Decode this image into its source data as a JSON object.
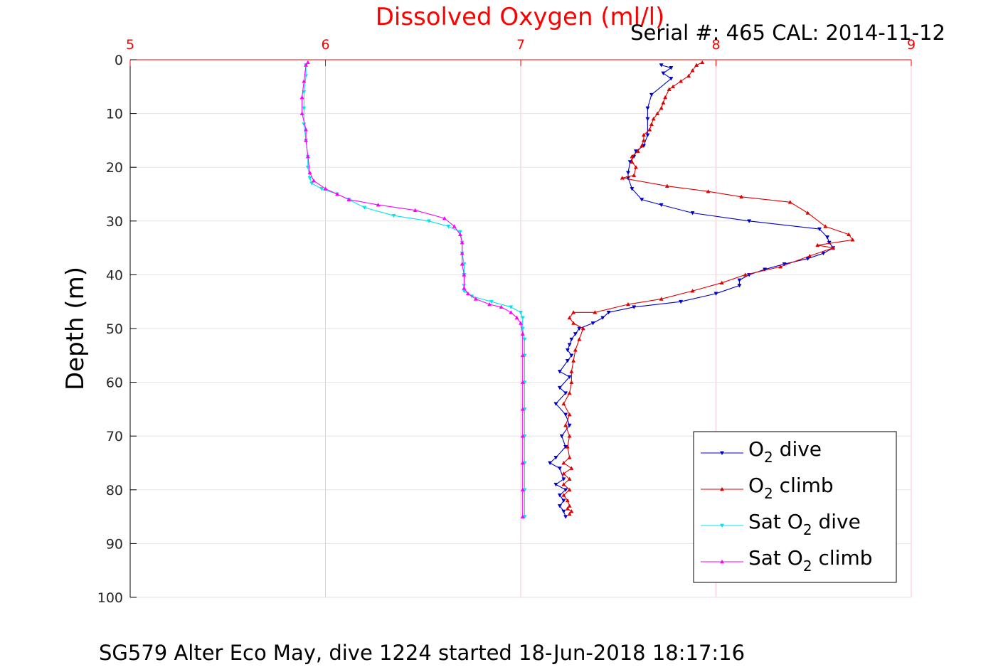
{
  "chart_data": {
    "type": "line",
    "title": "Dissolved Oxygen (ml/l)",
    "subtitle": "Serial #: 465  CAL: 2014-11-12",
    "ylabel": "Depth (m)",
    "footer": "SG579 Alter Eco May, dive 1224 started 18-Jun-2018 18:17:16",
    "x_range": [
      5,
      9
    ],
    "x_ticks": [
      "5",
      "6",
      "7",
      "8",
      "9"
    ],
    "y_range": [
      0,
      100
    ],
    "y_reversed": true,
    "y_ticks": [
      "0",
      "10",
      "20",
      "30",
      "40",
      "50",
      "60",
      "70",
      "80",
      "90",
      "100"
    ],
    "grid": true,
    "legend_position": "bottom-right",
    "colors": {
      "o2_dive": "#0000cc",
      "o2_climb": "#e00000",
      "sat_dive": "#00e5ee",
      "sat_climb": "#ff00ff",
      "title": "#ff0000",
      "top_axis": "#ff0000",
      "grid": "#e6e6e6"
    },
    "legend": [
      {
        "key": "o2_dive",
        "pre": "O",
        "sub": "2",
        "post": " dive",
        "marker": "down"
      },
      {
        "key": "o2_climb",
        "pre": "O",
        "sub": "2",
        "post": " climb",
        "marker": "up"
      },
      {
        "key": "sat_dive",
        "pre": "Sat O",
        "sub": "2",
        "post": " dive",
        "marker": "down"
      },
      {
        "key": "sat_climb",
        "pre": "Sat O",
        "sub": "2",
        "post": " climb",
        "marker": "up"
      }
    ],
    "series": [
      {
        "key": "o2_dive",
        "marker": "down",
        "points": [
          [
            7.72,
            1
          ],
          [
            7.77,
            1.5
          ],
          [
            7.73,
            2.5
          ],
          [
            7.77,
            3.5
          ],
          [
            7.67,
            6.5
          ],
          [
            7.65,
            9
          ],
          [
            7.65,
            11
          ],
          [
            7.65,
            14
          ],
          [
            7.63,
            16
          ],
          [
            7.59,
            17
          ],
          [
            7.58,
            18
          ],
          [
            7.56,
            19
          ],
          [
            7.55,
            21
          ],
          [
            7.55,
            22
          ],
          [
            7.57,
            24
          ],
          [
            7.62,
            26
          ],
          [
            7.72,
            27
          ],
          [
            7.88,
            28.5
          ],
          [
            8.17,
            30
          ],
          [
            8.53,
            31.5
          ],
          [
            8.57,
            33
          ],
          [
            8.58,
            34
          ],
          [
            8.6,
            35
          ],
          [
            8.55,
            36
          ],
          [
            8.47,
            37
          ],
          [
            8.35,
            38
          ],
          [
            8.25,
            39
          ],
          [
            8.17,
            40
          ],
          [
            8.12,
            41
          ],
          [
            8.12,
            42
          ],
          [
            8.0,
            43.5
          ],
          [
            7.82,
            45
          ],
          [
            7.58,
            46
          ],
          [
            7.45,
            47
          ],
          [
            7.42,
            48
          ],
          [
            7.37,
            49
          ],
          [
            7.3,
            50
          ],
          [
            7.28,
            51
          ],
          [
            7.26,
            52
          ],
          [
            7.25,
            53
          ],
          [
            7.24,
            54
          ],
          [
            7.26,
            55
          ],
          [
            7.24,
            56
          ],
          [
            7.2,
            58
          ],
          [
            7.25,
            59
          ],
          [
            7.2,
            61
          ],
          [
            7.23,
            62
          ],
          [
            7.18,
            64
          ],
          [
            7.23,
            66
          ],
          [
            7.25,
            68
          ],
          [
            7.21,
            70
          ],
          [
            7.23,
            72
          ],
          [
            7.18,
            74
          ],
          [
            7.15,
            75
          ],
          [
            7.2,
            76
          ],
          [
            7.22,
            78
          ],
          [
            7.18,
            79
          ],
          [
            7.23,
            80
          ],
          [
            7.2,
            81
          ],
          [
            7.22,
            82
          ],
          [
            7.2,
            83
          ],
          [
            7.22,
            84
          ],
          [
            7.23,
            85
          ]
        ]
      },
      {
        "key": "o2_climb",
        "marker": "up",
        "points": [
          [
            7.25,
            84.5
          ],
          [
            7.26,
            84
          ],
          [
            7.24,
            83.5
          ],
          [
            7.25,
            83
          ],
          [
            7.24,
            82
          ],
          [
            7.22,
            81
          ],
          [
            7.25,
            80
          ],
          [
            7.22,
            79
          ],
          [
            7.25,
            78
          ],
          [
            7.22,
            77
          ],
          [
            7.26,
            76
          ],
          [
            7.22,
            75
          ],
          [
            7.25,
            74
          ],
          [
            7.24,
            72
          ],
          [
            7.25,
            70
          ],
          [
            7.23,
            68
          ],
          [
            7.25,
            66
          ],
          [
            7.22,
            64
          ],
          [
            7.25,
            62
          ],
          [
            7.26,
            60
          ],
          [
            7.26,
            58
          ],
          [
            7.27,
            56
          ],
          [
            7.28,
            54
          ],
          [
            7.3,
            52
          ],
          [
            7.32,
            50
          ],
          [
            7.27,
            49
          ],
          [
            7.25,
            48
          ],
          [
            7.27,
            47
          ],
          [
            7.38,
            47
          ],
          [
            7.55,
            45.5
          ],
          [
            7.72,
            44.5
          ],
          [
            7.88,
            43
          ],
          [
            8.03,
            41.5
          ],
          [
            8.15,
            40
          ],
          [
            8.33,
            38.5
          ],
          [
            8.48,
            36.5
          ],
          [
            8.6,
            35
          ],
          [
            8.52,
            34.5
          ],
          [
            8.7,
            33.5
          ],
          [
            8.68,
            32.5
          ],
          [
            8.56,
            31
          ],
          [
            8.47,
            28.5
          ],
          [
            8.38,
            26.5
          ],
          [
            8.13,
            25.5
          ],
          [
            7.96,
            24.5
          ],
          [
            7.75,
            23.5
          ],
          [
            7.52,
            22
          ],
          [
            7.58,
            21.5
          ],
          [
            7.59,
            20
          ],
          [
            7.57,
            19
          ],
          [
            7.57,
            18
          ],
          [
            7.6,
            17
          ],
          [
            7.62,
            16
          ],
          [
            7.63,
            15
          ],
          [
            7.63,
            14
          ],
          [
            7.66,
            13
          ],
          [
            7.67,
            12
          ],
          [
            7.68,
            11
          ],
          [
            7.7,
            10
          ],
          [
            7.72,
            9
          ],
          [
            7.73,
            8
          ],
          [
            7.74,
            7
          ],
          [
            7.76,
            5.5
          ],
          [
            7.78,
            5
          ],
          [
            7.82,
            4
          ],
          [
            7.86,
            3
          ],
          [
            7.88,
            2
          ],
          [
            7.9,
            1
          ],
          [
            7.93,
            0.5
          ]
        ]
      },
      {
        "key": "sat_dive",
        "marker": "down",
        "points": [
          [
            5.9,
            1
          ],
          [
            5.9,
            3
          ],
          [
            5.89,
            6
          ],
          [
            5.89,
            9
          ],
          [
            5.89,
            12
          ],
          [
            5.9,
            15
          ],
          [
            5.91,
            18
          ],
          [
            5.91,
            20
          ],
          [
            5.92,
            22
          ],
          [
            5.93,
            23
          ],
          [
            5.98,
            24
          ],
          [
            6.06,
            25
          ],
          [
            6.12,
            26
          ],
          [
            6.2,
            27.5
          ],
          [
            6.35,
            29
          ],
          [
            6.53,
            30
          ],
          [
            6.63,
            31
          ],
          [
            6.69,
            32
          ],
          [
            6.7,
            34
          ],
          [
            6.7,
            36
          ],
          [
            6.71,
            38
          ],
          [
            6.71,
            40
          ],
          [
            6.71,
            42
          ],
          [
            6.71,
            43
          ],
          [
            6.75,
            44
          ],
          [
            6.85,
            45
          ],
          [
            6.95,
            46
          ],
          [
            7.0,
            47
          ],
          [
            7.01,
            48
          ],
          [
            7.01,
            50
          ],
          [
            7.02,
            52
          ],
          [
            7.02,
            55
          ],
          [
            7.02,
            60
          ],
          [
            7.02,
            65
          ],
          [
            7.02,
            70
          ],
          [
            7.02,
            75
          ],
          [
            7.02,
            80
          ],
          [
            7.02,
            85
          ]
        ]
      },
      {
        "key": "sat_climb",
        "marker": "up",
        "points": [
          [
            7.01,
            85
          ],
          [
            7.01,
            80
          ],
          [
            7.01,
            75
          ],
          [
            7.01,
            70
          ],
          [
            7.01,
            65
          ],
          [
            7.01,
            60
          ],
          [
            7.01,
            55
          ],
          [
            7.01,
            51
          ],
          [
            7.0,
            49
          ],
          [
            6.98,
            48
          ],
          [
            6.95,
            47
          ],
          [
            6.9,
            46
          ],
          [
            6.84,
            45.5
          ],
          [
            6.77,
            44.5
          ],
          [
            6.73,
            43.5
          ],
          [
            6.71,
            42.5
          ],
          [
            6.71,
            40
          ],
          [
            6.7,
            38
          ],
          [
            6.7,
            36
          ],
          [
            6.7,
            34
          ],
          [
            6.69,
            32.5
          ],
          [
            6.66,
            31
          ],
          [
            6.61,
            29.5
          ],
          [
            6.46,
            28
          ],
          [
            6.27,
            27
          ],
          [
            6.12,
            26
          ],
          [
            6.06,
            25
          ],
          [
            6.0,
            24
          ],
          [
            5.94,
            22.5
          ],
          [
            5.92,
            21
          ],
          [
            5.91,
            18
          ],
          [
            5.9,
            15
          ],
          [
            5.9,
            13
          ],
          [
            5.88,
            10
          ],
          [
            5.88,
            7
          ],
          [
            5.89,
            4
          ],
          [
            5.9,
            1
          ],
          [
            5.91,
            0.5
          ]
        ]
      }
    ]
  }
}
